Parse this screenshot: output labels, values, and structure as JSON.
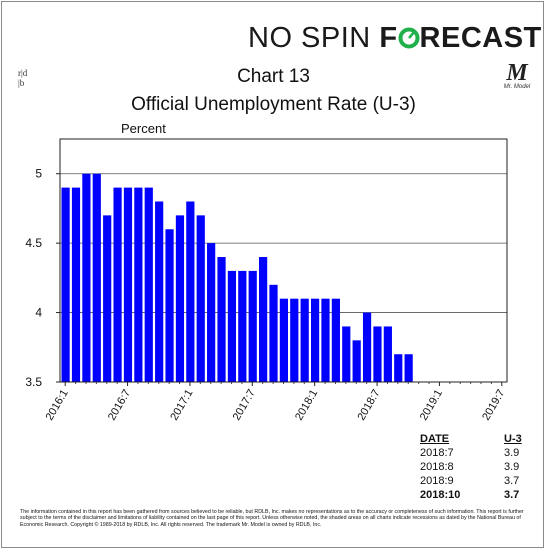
{
  "brand": {
    "part1": "NO SPIN ",
    "part2": "F",
    "part3": "RECAST",
    "o_color": "#1fb04a"
  },
  "corner_mark": {
    "top": "r|d",
    "bottom": "|b"
  },
  "mr_logo": {
    "letter": "M",
    "caption": "Mr. Model"
  },
  "chart_data": {
    "type": "bar",
    "title": "Chart 13",
    "subtitle": "Official Unemployment Rate (U-3)",
    "ylabel": "Percent",
    "xlabel": "",
    "ylim": [
      3.5,
      5.25
    ],
    "yticks": [
      3.5,
      4,
      4.5,
      5
    ],
    "ytick_labels": [
      "3.5",
      "4",
      "4.5",
      "5"
    ],
    "grid": true,
    "bar_color": "#0000ff",
    "x_start": "2016:1",
    "total_slots": 43,
    "xtick_labels": [
      "2016:1",
      "2016:7",
      "2017:1",
      "2017:7",
      "2018:1",
      "2018:7",
      "2019:1",
      "2019:7"
    ],
    "xtick_every": 6,
    "series": [
      {
        "values": [
          4.9,
          4.9,
          5.0,
          5.0,
          4.7,
          4.9,
          4.9,
          4.9,
          4.9,
          4.8,
          4.6,
          4.7,
          4.8,
          4.7,
          4.5,
          4.4,
          4.3,
          4.3,
          4.3,
          4.4,
          4.2,
          4.1,
          4.1,
          4.1,
          4.1,
          4.1,
          4.1,
          3.9,
          3.8,
          4.0,
          3.9,
          3.9,
          3.7,
          3.7
        ]
      }
    ]
  },
  "table": {
    "headers": [
      "DATE",
      "U-3"
    ],
    "rows": [
      [
        "2018:7",
        "3.9"
      ],
      [
        "2018:8",
        "3.9"
      ],
      [
        "2018:9",
        "3.7"
      ],
      [
        "2018:10",
        "3.7"
      ]
    ]
  },
  "disclaimer": "The information contained in this report has been gathered from sources believed to be reliable, but RDLB, Inc. makes no representations as to the accuracy or completeness of such information. This report is further subject to the terms of the disclaimer and limitations of liability contained on the last page of this report. Unless otherwise noted, the shaded areas on all charts indicate recessions as dated by the National Bureau of Economic Research. Copyright © 1989-2018 by RDLB, Inc. All rights reserved. The trademark Mr. Model is owned by RDLB, Inc."
}
